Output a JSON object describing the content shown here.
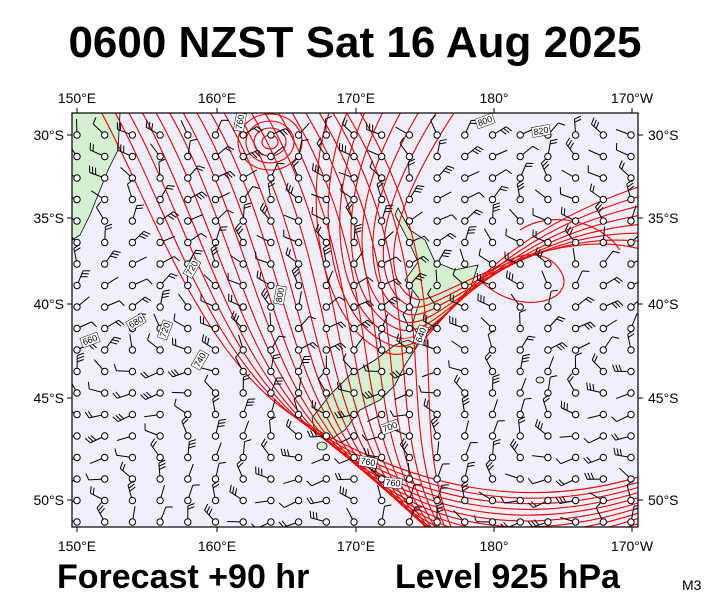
{
  "title": "0600 NZST Sat 16 Aug 2025",
  "lon_labels": [
    "150°E",
    "160°E",
    "170°E",
    "180°",
    "170°W"
  ],
  "lat_labels": [
    "30°S",
    "35°S",
    "40°S",
    "45°S",
    "50°S"
  ],
  "contour_labels": [
    "760",
    "800",
    "820",
    "640",
    "720",
    "680",
    "740",
    "720",
    "800",
    "700",
    "760",
    "760",
    "660"
  ],
  "footer": {
    "forecast": "Forecast +90 hr",
    "level": "Level 925 hPa",
    "code": "M3"
  }
}
